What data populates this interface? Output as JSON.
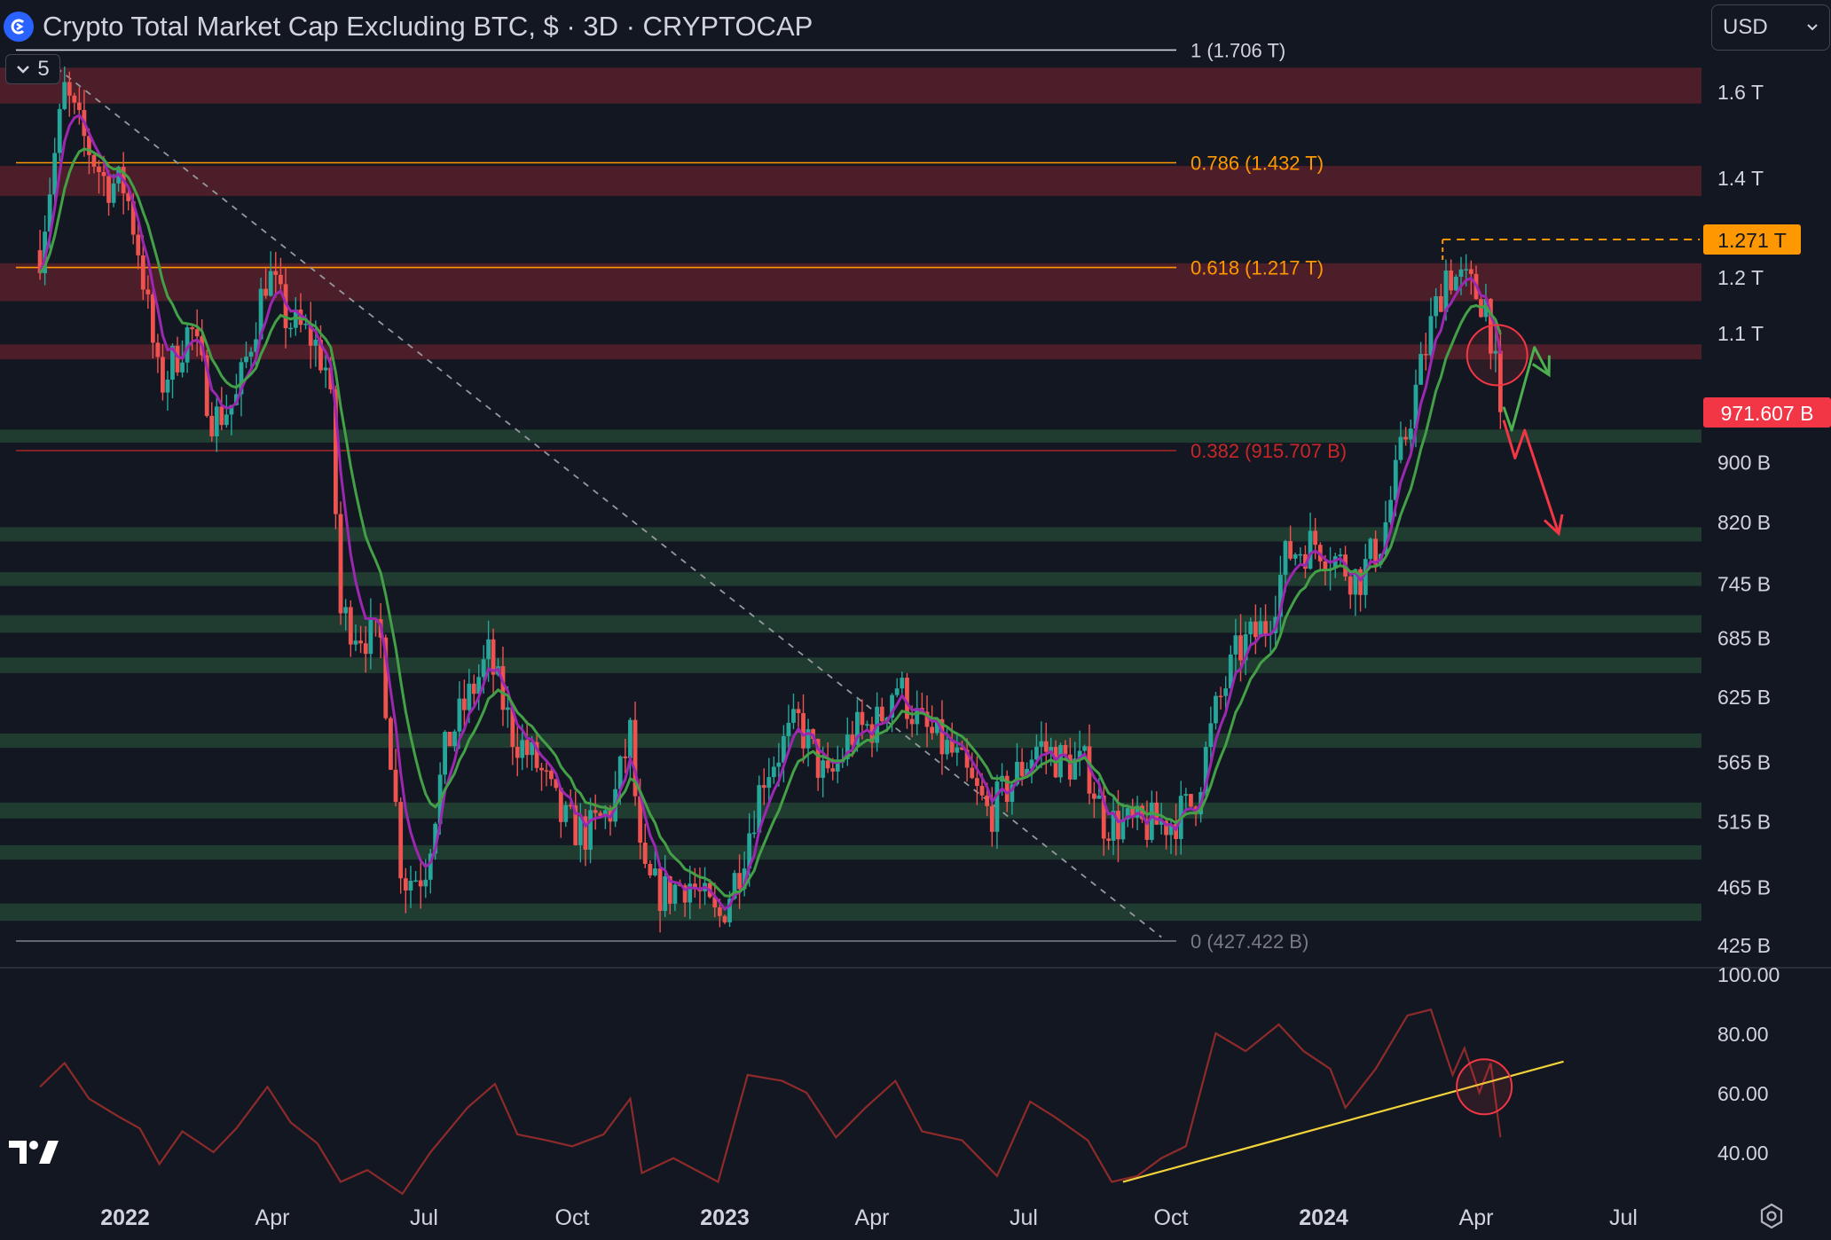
{
  "header": {
    "title": "Crypto Total Market Cap Excluding BTC, $ · 3D · CRYPTOCAP",
    "indicator_count": "5",
    "currency": "USD",
    "icons": [
      "cryptocap-logo-icon",
      "chevron-down-icon",
      "tradingview-logo-icon",
      "gear-icon"
    ]
  },
  "chart_data": {
    "type": "candlestick",
    "symbol": "CRYPTOCAP:TOTAL2",
    "timeframe": "3D",
    "yscale": "log",
    "ylim": [
      410,
      1820
    ],
    "price_ticks": [
      {
        "label": "1.6 T",
        "value": 1600
      },
      {
        "label": "1.4 T",
        "value": 1400
      },
      {
        "label": "1.2 T",
        "value": 1200
      },
      {
        "label": "1.1 T",
        "value": 1100
      },
      {
        "label": "900 B",
        "value": 900
      },
      {
        "label": "820 B",
        "value": 820
      },
      {
        "label": "745 B",
        "value": 745
      },
      {
        "label": "685 B",
        "value": 685
      },
      {
        "label": "625 B",
        "value": 625
      },
      {
        "label": "565 B",
        "value": 565
      },
      {
        "label": "515 B",
        "value": 515
      },
      {
        "label": "465 B",
        "value": 465
      },
      {
        "label": "425 B",
        "value": 425
      }
    ],
    "time_ticks": [
      {
        "label": "2022",
        "date": "2022-01-01",
        "major": true
      },
      {
        "label": "Apr",
        "date": "2022-04-01",
        "major": false
      },
      {
        "label": "Jul",
        "date": "2022-07-01",
        "major": false
      },
      {
        "label": "Oct",
        "date": "2022-10-01",
        "major": false
      },
      {
        "label": "2023",
        "date": "2023-01-01",
        "major": true
      },
      {
        "label": "Apr",
        "date": "2023-04-01",
        "major": false
      },
      {
        "label": "Jul",
        "date": "2023-07-01",
        "major": false
      },
      {
        "label": "Oct",
        "date": "2023-10-01",
        "major": false
      },
      {
        "label": "2024",
        "date": "2024-01-01",
        "major": true
      },
      {
        "label": "Apr",
        "date": "2024-04-01",
        "major": false
      },
      {
        "label": "Jul",
        "date": "2024-07-01",
        "major": false
      }
    ],
    "price_path": [
      [
        "2021-11-10",
        1250
      ],
      [
        "2021-11-25",
        1600
      ],
      [
        "2021-12-05",
        1500
      ],
      [
        "2021-12-20",
        1390
      ],
      [
        "2022-01-01",
        1380
      ],
      [
        "2022-01-10",
        1240
      ],
      [
        "2022-01-22",
        1010
      ],
      [
        "2022-02-01",
        1060
      ],
      [
        "2022-02-10",
        1110
      ],
      [
        "2022-02-24",
        960
      ],
      [
        "2022-03-10",
        990
      ],
      [
        "2022-03-29",
        1210
      ],
      [
        "2022-04-10",
        1120
      ],
      [
        "2022-04-25",
        1090
      ],
      [
        "2022-05-05",
        1030
      ],
      [
        "2022-05-12",
        710
      ],
      [
        "2022-05-25",
        690
      ],
      [
        "2022-06-05",
        680
      ],
      [
        "2022-06-18",
        470
      ],
      [
        "2022-07-01",
        475
      ],
      [
        "2022-07-15",
        580
      ],
      [
        "2022-08-10",
        665
      ],
      [
        "2022-08-25",
        590
      ],
      [
        "2022-09-10",
        560
      ],
      [
        "2022-09-25",
        515
      ],
      [
        "2022-10-10",
        505
      ],
      [
        "2022-10-25",
        525
      ],
      [
        "2022-11-05",
        590
      ],
      [
        "2022-11-12",
        470
      ],
      [
        "2022-11-25",
        460
      ],
      [
        "2022-12-10",
        470
      ],
      [
        "2022-12-28",
        440
      ],
      [
        "2023-01-10",
        480
      ],
      [
        "2023-01-25",
        555
      ],
      [
        "2023-02-15",
        600
      ],
      [
        "2023-03-05",
        545
      ],
      [
        "2023-03-20",
        590
      ],
      [
        "2023-04-05",
        600
      ],
      [
        "2023-04-15",
        640
      ],
      [
        "2023-05-01",
        595
      ],
      [
        "2023-05-20",
        570
      ],
      [
        "2023-06-10",
        520
      ],
      [
        "2023-06-20",
        540
      ],
      [
        "2023-07-10",
        580
      ],
      [
        "2023-07-25",
        565
      ],
      [
        "2023-08-10",
        560
      ],
      [
        "2023-08-20",
        515
      ],
      [
        "2023-09-10",
        510
      ],
      [
        "2023-10-01",
        515
      ],
      [
        "2023-10-15",
        530
      ],
      [
        "2023-10-28",
        610
      ],
      [
        "2023-11-10",
        670
      ],
      [
        "2023-11-28",
        700
      ],
      [
        "2023-12-10",
        780
      ],
      [
        "2023-12-28",
        795
      ],
      [
        "2024-01-10",
        770
      ],
      [
        "2024-01-22",
        750
      ],
      [
        "2024-02-05",
        800
      ],
      [
        "2024-02-20",
        950
      ],
      [
        "2024-03-05",
        1110
      ],
      [
        "2024-03-14",
        1210
      ],
      [
        "2024-03-28",
        1180
      ],
      [
        "2024-04-08",
        1150
      ],
      [
        "2024-04-16",
        972
      ]
    ],
    "last_price": {
      "value": 971.607,
      "label": "971.607 B",
      "color": "#f23645"
    },
    "high_marker": {
      "value": 1271,
      "label": "1.271 T",
      "color": "#ff9800",
      "from": "2024-03-12"
    },
    "moving_averages": [
      {
        "period_fast": true,
        "color": "#9c27b0"
      },
      {
        "period_fast": false,
        "color": "#43a047"
      }
    ],
    "fib_levels": [
      {
        "ratio": "1",
        "label": "1 (1.706 T)",
        "value": 1706,
        "color": "#d1d4dc"
      },
      {
        "ratio": "0.786",
        "label": "0.786 (1.432 T)",
        "value": 1432,
        "color": "#ff9800"
      },
      {
        "ratio": "0.618",
        "label": "0.618 (1.217 T)",
        "value": 1217,
        "color": "#ff9800"
      },
      {
        "ratio": "0.382",
        "label": "0.382 (915.707 B)",
        "value": 915.7,
        "color": "#c62828"
      },
      {
        "ratio": "0",
        "label": "0 (427.422 B)",
        "value": 427.4,
        "color": "#787b86"
      }
    ],
    "resistance_zones": [
      [
        1570,
        1660
      ],
      [
        1360,
        1425
      ],
      [
        1155,
        1225
      ],
      [
        1055,
        1080
      ]
    ],
    "support_zones": [
      [
        927,
        946
      ],
      [
        795,
        813
      ],
      [
        742,
        758
      ],
      [
        690,
        709
      ],
      [
        648,
        664
      ],
      [
        577,
        590
      ],
      [
        517,
        530
      ],
      [
        485,
        496
      ],
      [
        441,
        453
      ]
    ],
    "trendline": {
      "from": [
        "2021-11-20",
        1660
      ],
      "to": [
        "2023-09-25",
        430
      ]
    },
    "projection_up": [
      [
        "2024-04-18",
        980
      ],
      [
        "2024-04-23",
        945
      ],
      [
        "2024-05-07",
        1075
      ],
      [
        "2024-05-16",
        1030
      ]
    ],
    "projection_down": [
      [
        "2024-04-18",
        960
      ],
      [
        "2024-04-25",
        905
      ],
      [
        "2024-05-01",
        945
      ],
      [
        "2024-05-22",
        805
      ]
    ],
    "rsi": {
      "ticks": [
        {
          "label": "100.00",
          "value": 100
        },
        {
          "label": "80.00",
          "value": 80
        },
        {
          "label": "60.00",
          "value": 60
        },
        {
          "label": "40.00",
          "value": 40
        }
      ],
      "path": [
        [
          "2021-11-10",
          62
        ],
        [
          "2021-11-25",
          70
        ],
        [
          "2021-12-10",
          58
        ],
        [
          "2021-12-28",
          52
        ],
        [
          "2022-01-10",
          48
        ],
        [
          "2022-01-22",
          36
        ],
        [
          "2022-02-05",
          47
        ],
        [
          "2022-02-24",
          40
        ],
        [
          "2022-03-10",
          48
        ],
        [
          "2022-03-29",
          62
        ],
        [
          "2022-04-12",
          50
        ],
        [
          "2022-04-28",
          43
        ],
        [
          "2022-05-12",
          30
        ],
        [
          "2022-05-28",
          34
        ],
        [
          "2022-06-18",
          26
        ],
        [
          "2022-07-05",
          40
        ],
        [
          "2022-07-28",
          55
        ],
        [
          "2022-08-14",
          63
        ],
        [
          "2022-08-28",
          46
        ],
        [
          "2022-09-15",
          44
        ],
        [
          "2022-10-01",
          42
        ],
        [
          "2022-10-20",
          46
        ],
        [
          "2022-11-05",
          58
        ],
        [
          "2022-11-12",
          33
        ],
        [
          "2022-12-01",
          38
        ],
        [
          "2022-12-28",
          30
        ],
        [
          "2023-01-15",
          66
        ],
        [
          "2023-02-05",
          64
        ],
        [
          "2023-02-20",
          60
        ],
        [
          "2023-03-10",
          45
        ],
        [
          "2023-03-28",
          55
        ],
        [
          "2023-04-15",
          64
        ],
        [
          "2023-05-01",
          47
        ],
        [
          "2023-05-25",
          44
        ],
        [
          "2023-06-15",
          32
        ],
        [
          "2023-07-05",
          57
        ],
        [
          "2023-07-20",
          52
        ],
        [
          "2023-08-10",
          44
        ],
        [
          "2023-08-25",
          30
        ],
        [
          "2023-09-10",
          32
        ],
        [
          "2023-09-25",
          38
        ],
        [
          "2023-10-10",
          42
        ],
        [
          "2023-10-28",
          80
        ],
        [
          "2023-11-15",
          74
        ],
        [
          "2023-12-05",
          83
        ],
        [
          "2023-12-20",
          74
        ],
        [
          "2024-01-05",
          68
        ],
        [
          "2024-01-14",
          55
        ],
        [
          "2024-02-01",
          68
        ],
        [
          "2024-02-20",
          86
        ],
        [
          "2024-03-05",
          88
        ],
        [
          "2024-03-18",
          66
        ],
        [
          "2024-03-25",
          75
        ],
        [
          "2024-04-03",
          60
        ],
        [
          "2024-04-10",
          70
        ],
        [
          "2024-04-16",
          45
        ]
      ],
      "trendline": {
        "from": [
          "2023-09-01",
          30
        ],
        "to": [
          "2024-05-25",
          70.5
        ]
      },
      "highlight": {
        "date": "2024-04-06",
        "value": 62
      }
    }
  }
}
